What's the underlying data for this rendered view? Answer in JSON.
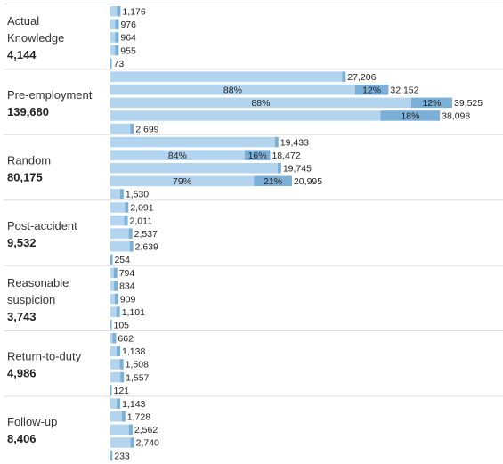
{
  "chart_data": {
    "type": "bar",
    "orientation": "horizontal",
    "stacked_segments": true,
    "colors": {
      "light": "#b3d4ee",
      "dark": "#7aafd8"
    },
    "xlim": [
      0,
      41000
    ],
    "categories": [
      {
        "name_lines": [
          "Actual",
          "Knowledge"
        ],
        "total": "4,144",
        "bars": [
          {
            "value": 1176,
            "label": "1,176"
          },
          {
            "value": 976,
            "label": "976"
          },
          {
            "value": 964,
            "label": "964"
          },
          {
            "value": 955,
            "label": "955"
          },
          {
            "value": 73,
            "label": "73"
          }
        ]
      },
      {
        "name_lines": [
          "Pre-employment"
        ],
        "total": "139,680",
        "bars": [
          {
            "value": 27206,
            "label": "27,206"
          },
          {
            "value": 32152,
            "label": "32,152",
            "left_pct": "88%",
            "right_pct": "12%"
          },
          {
            "value": 39525,
            "label": "39,525",
            "left_pct": "88%",
            "right_pct": "12%"
          },
          {
            "value": 38098,
            "label": "38,098",
            "right_pct": "18%"
          },
          {
            "value": 2699,
            "label": "2,699"
          }
        ]
      },
      {
        "name_lines": [
          "Random"
        ],
        "total": "80,175",
        "bars": [
          {
            "value": 19433,
            "label": "19,433"
          },
          {
            "value": 18472,
            "label": "18,472",
            "left_pct": "84%",
            "right_pct": "16%"
          },
          {
            "value": 19745,
            "label": "19,745"
          },
          {
            "value": 20995,
            "label": "20,995",
            "left_pct": "79%",
            "right_pct": "21%"
          },
          {
            "value": 1530,
            "label": "1,530"
          }
        ]
      },
      {
        "name_lines": [
          "Post-accident"
        ],
        "total": "9,532",
        "bars": [
          {
            "value": 2091,
            "label": "2,091"
          },
          {
            "value": 2011,
            "label": "2,011"
          },
          {
            "value": 2537,
            "label": "2,537"
          },
          {
            "value": 2639,
            "label": "2,639"
          },
          {
            "value": 254,
            "label": "254"
          }
        ]
      },
      {
        "name_lines": [
          "Reasonable",
          "suspicion"
        ],
        "total": "3,743",
        "bars": [
          {
            "value": 794,
            "label": "794"
          },
          {
            "value": 834,
            "label": "834"
          },
          {
            "value": 909,
            "label": "909"
          },
          {
            "value": 1101,
            "label": "1,101"
          },
          {
            "value": 105,
            "label": "105"
          }
        ]
      },
      {
        "name_lines": [
          "Return-to-duty"
        ],
        "total": "4,986",
        "bars": [
          {
            "value": 662,
            "label": "662"
          },
          {
            "value": 1138,
            "label": "1,138"
          },
          {
            "value": 1508,
            "label": "1,508"
          },
          {
            "value": 1557,
            "label": "1,557"
          },
          {
            "value": 121,
            "label": "121"
          }
        ]
      },
      {
        "name_lines": [
          "Follow-up"
        ],
        "total": "8,406",
        "bars": [
          {
            "value": 1143,
            "label": "1,143"
          },
          {
            "value": 1728,
            "label": "1,728"
          },
          {
            "value": 2562,
            "label": "2,562"
          },
          {
            "value": 2740,
            "label": "2,740"
          },
          {
            "value": 233,
            "label": "233"
          }
        ]
      }
    ]
  }
}
